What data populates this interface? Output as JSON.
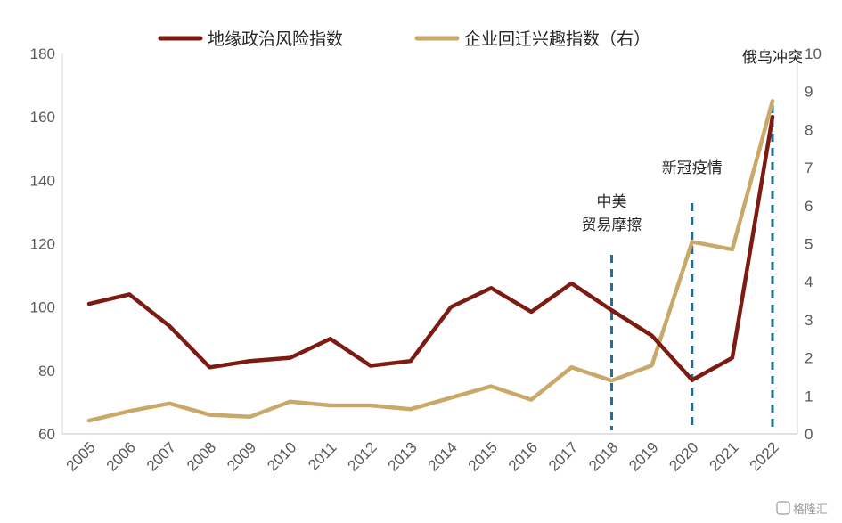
{
  "colors": {
    "geo_line": "#7B1B12",
    "relocation_line": "#C9A96A",
    "event_marker": "#1F6E96",
    "axis": "#D9D9D9"
  },
  "watermark": "格隆汇",
  "chart_data": {
    "type": "line",
    "x": [
      "2005",
      "2006",
      "2007",
      "2008",
      "2009",
      "2010",
      "2011",
      "2012",
      "2013",
      "2014",
      "2015",
      "2016",
      "2017",
      "2018",
      "2019",
      "2020",
      "2021",
      "2022"
    ],
    "series": [
      {
        "name": "地缘政治风险指数",
        "axis": "left",
        "values": [
          101,
          104,
          94,
          81,
          83,
          84,
          90,
          81.5,
          83,
          100,
          106,
          98.5,
          107.5,
          99,
          91,
          77,
          84,
          160
        ]
      },
      {
        "name": "企业回迁兴趣指数（右）",
        "axis": "right",
        "values": [
          0.35,
          0.6,
          0.8,
          0.5,
          0.45,
          0.85,
          0.75,
          0.75,
          0.65,
          0.95,
          1.25,
          0.9,
          1.75,
          1.4,
          1.8,
          5.05,
          4.85,
          8.75
        ]
      }
    ],
    "y_left": {
      "min": 60,
      "max": 180,
      "ticks": [
        "60",
        "80",
        "100",
        "120",
        "140",
        "160",
        "180"
      ]
    },
    "y_right": {
      "min": 0,
      "max": 10,
      "ticks": [
        "0",
        "1",
        "2",
        "3",
        "4",
        "5",
        "6",
        "7",
        "8",
        "9",
        "10"
      ]
    },
    "legend_position": "top",
    "grid": false,
    "events": [
      {
        "x": "2018",
        "label_lines": [
          "中美",
          "贸易摩擦"
        ]
      },
      {
        "x": "2020",
        "label_lines": [
          "新冠疫情"
        ]
      },
      {
        "x": "2022",
        "label_lines": [
          "俄乌冲突"
        ]
      }
    ]
  }
}
